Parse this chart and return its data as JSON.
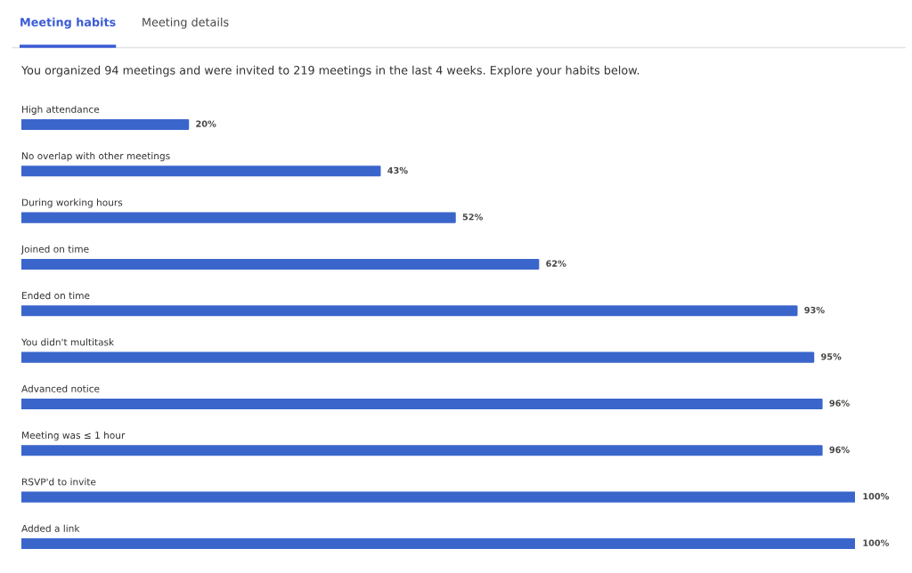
{
  "chart_data": {
    "type": "bar",
    "orientation": "horizontal",
    "title": "You organized 94 meetings and were invited to 219 meetings in the last 4 weeks. Explore your habits below.",
    "annotations": [
      "Meeting habits",
      "Meeting details"
    ],
    "categories": [
      "High attendance",
      "No overlap with other meetings",
      "During working hours",
      "Joined on time",
      "Ended on time",
      "You didn't multitask",
      "Advanced notice",
      "Meeting was ≤ 1 hour",
      "RSVP'd to invite",
      "Added a link"
    ],
    "values": [
      20,
      43,
      52,
      62,
      93,
      95,
      96,
      96,
      100,
      100
    ],
    "value_labels": [
      "20%",
      "43%",
      "52%",
      "62%",
      "93%",
      "95%",
      "96%",
      "96%",
      "100%",
      "100%"
    ],
    "color": "#3a66cc",
    "xlim": [
      0,
      100
    ],
    "tick_labels": false
  }
}
